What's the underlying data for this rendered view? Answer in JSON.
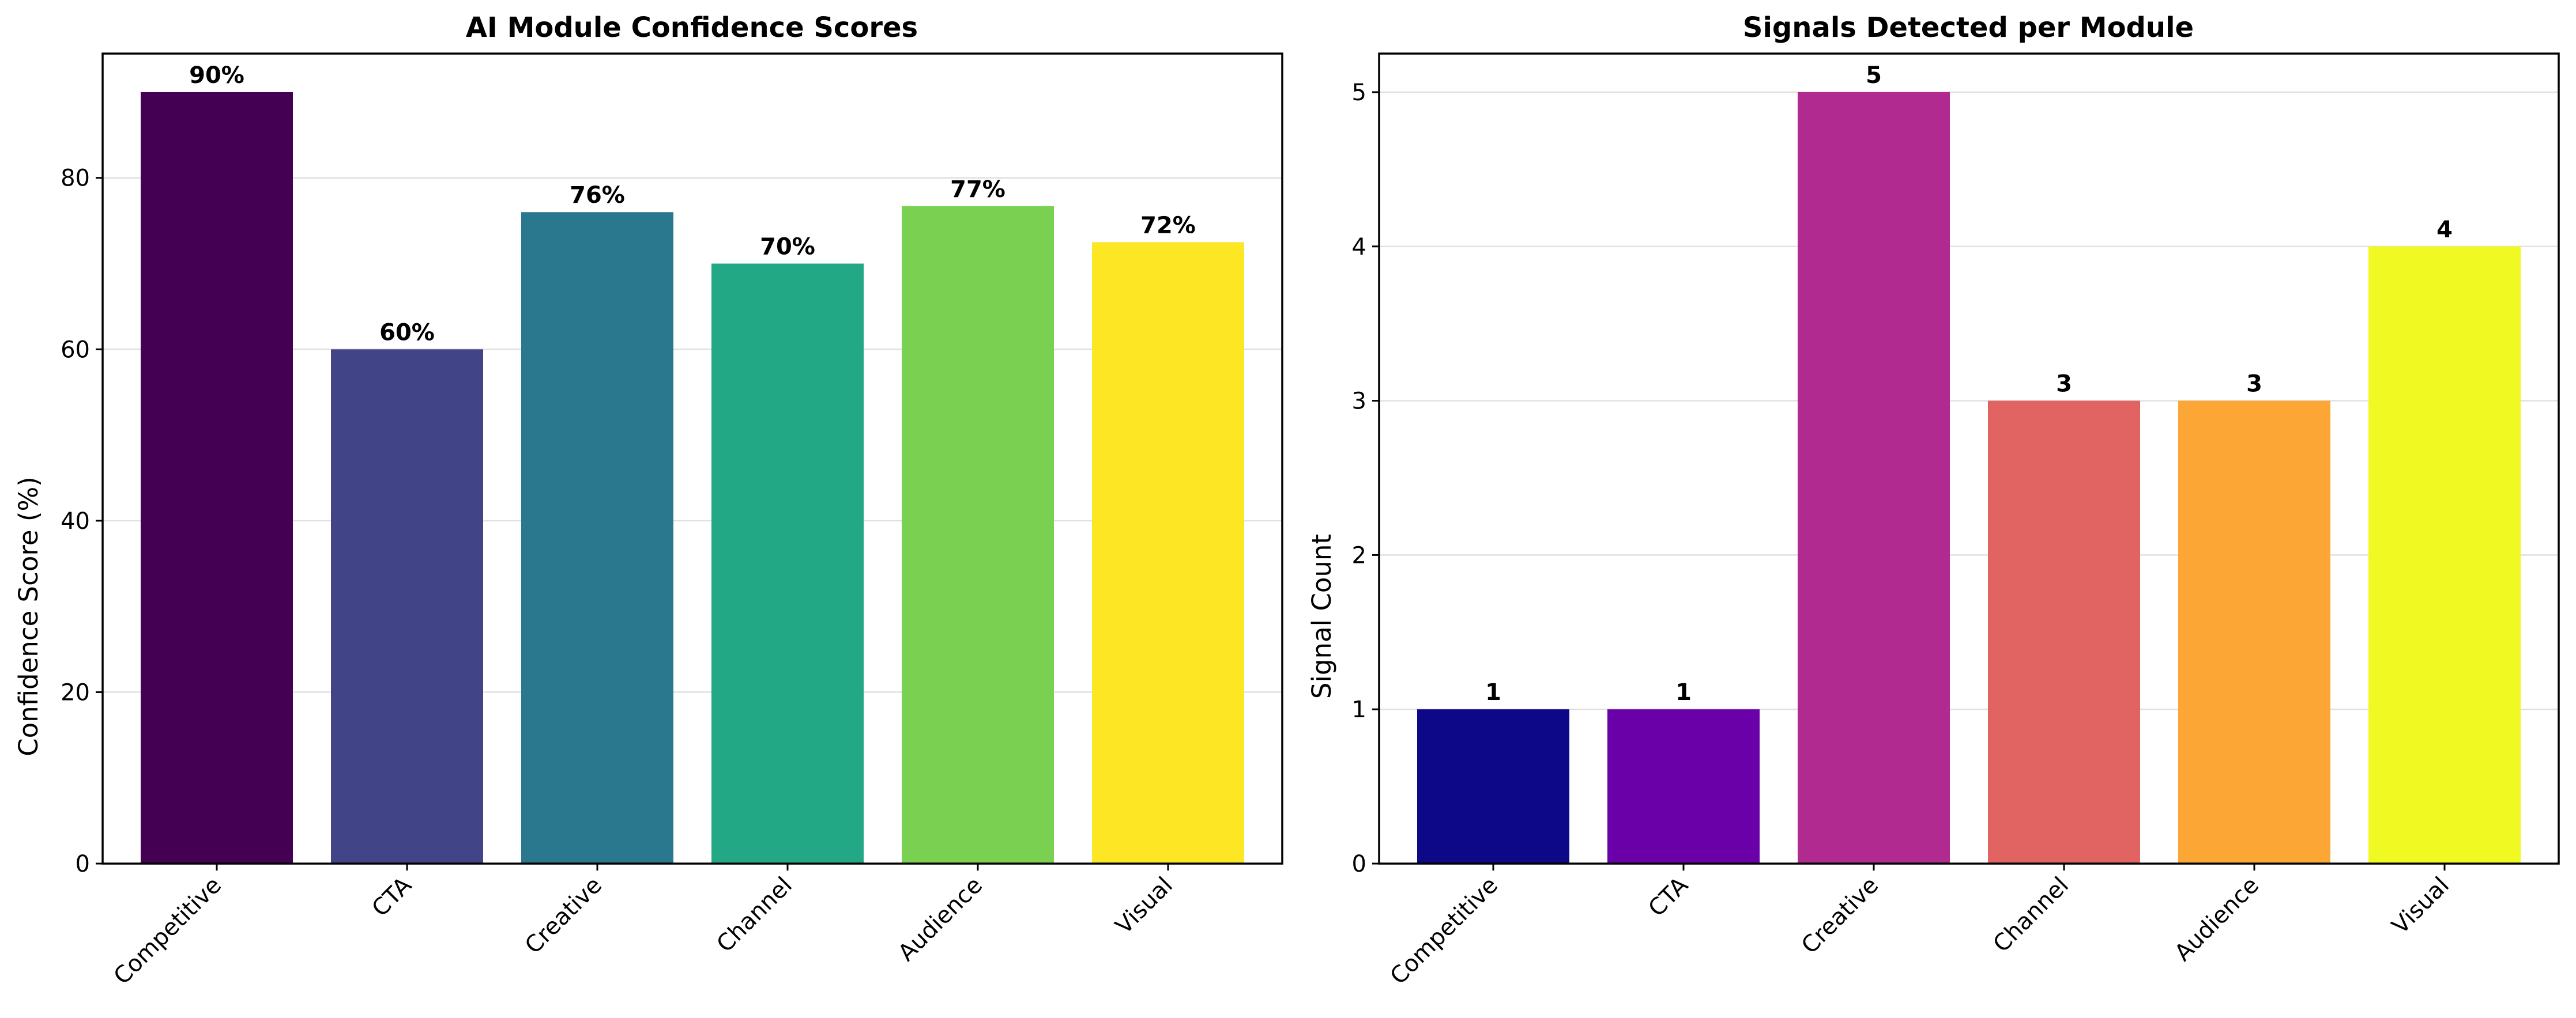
{
  "chart_data": [
    {
      "type": "bar",
      "title": "AI Module Confidence Scores",
      "xlabel": "",
      "ylabel": "Confidence Score (%)",
      "categories": [
        "Competitive",
        "CTA",
        "Creative",
        "Channel",
        "Audience",
        "Visual"
      ],
      "values": [
        90,
        60,
        76,
        70,
        76.7,
        72.5
      ],
      "data_labels": [
        "90%",
        "60%",
        "76%",
        "70%",
        "77%",
        "72%"
      ],
      "colors": [
        "#440154",
        "#414487",
        "#2a788e",
        "#22a884",
        "#7ad151",
        "#fde725"
      ],
      "ylim": [
        0,
        94.5
      ],
      "yticks": [
        0,
        20,
        40,
        60,
        80
      ],
      "grid": "y"
    },
    {
      "type": "bar",
      "title": "Signals Detected per Module",
      "xlabel": "",
      "ylabel": "Signal Count",
      "categories": [
        "Competitive",
        "CTA",
        "Creative",
        "Channel",
        "Audience",
        "Visual"
      ],
      "values": [
        1,
        1,
        5,
        3,
        3,
        4
      ],
      "data_labels": [
        "1",
        "1",
        "5",
        "3",
        "3",
        "4"
      ],
      "colors": [
        "#0d0887",
        "#6a00a8",
        "#b12a90",
        "#e16462",
        "#fca636",
        "#f0f921"
      ],
      "ylim": [
        0,
        5.25
      ],
      "yticks": [
        0,
        1,
        2,
        3,
        4,
        5
      ],
      "grid": "y"
    }
  ]
}
